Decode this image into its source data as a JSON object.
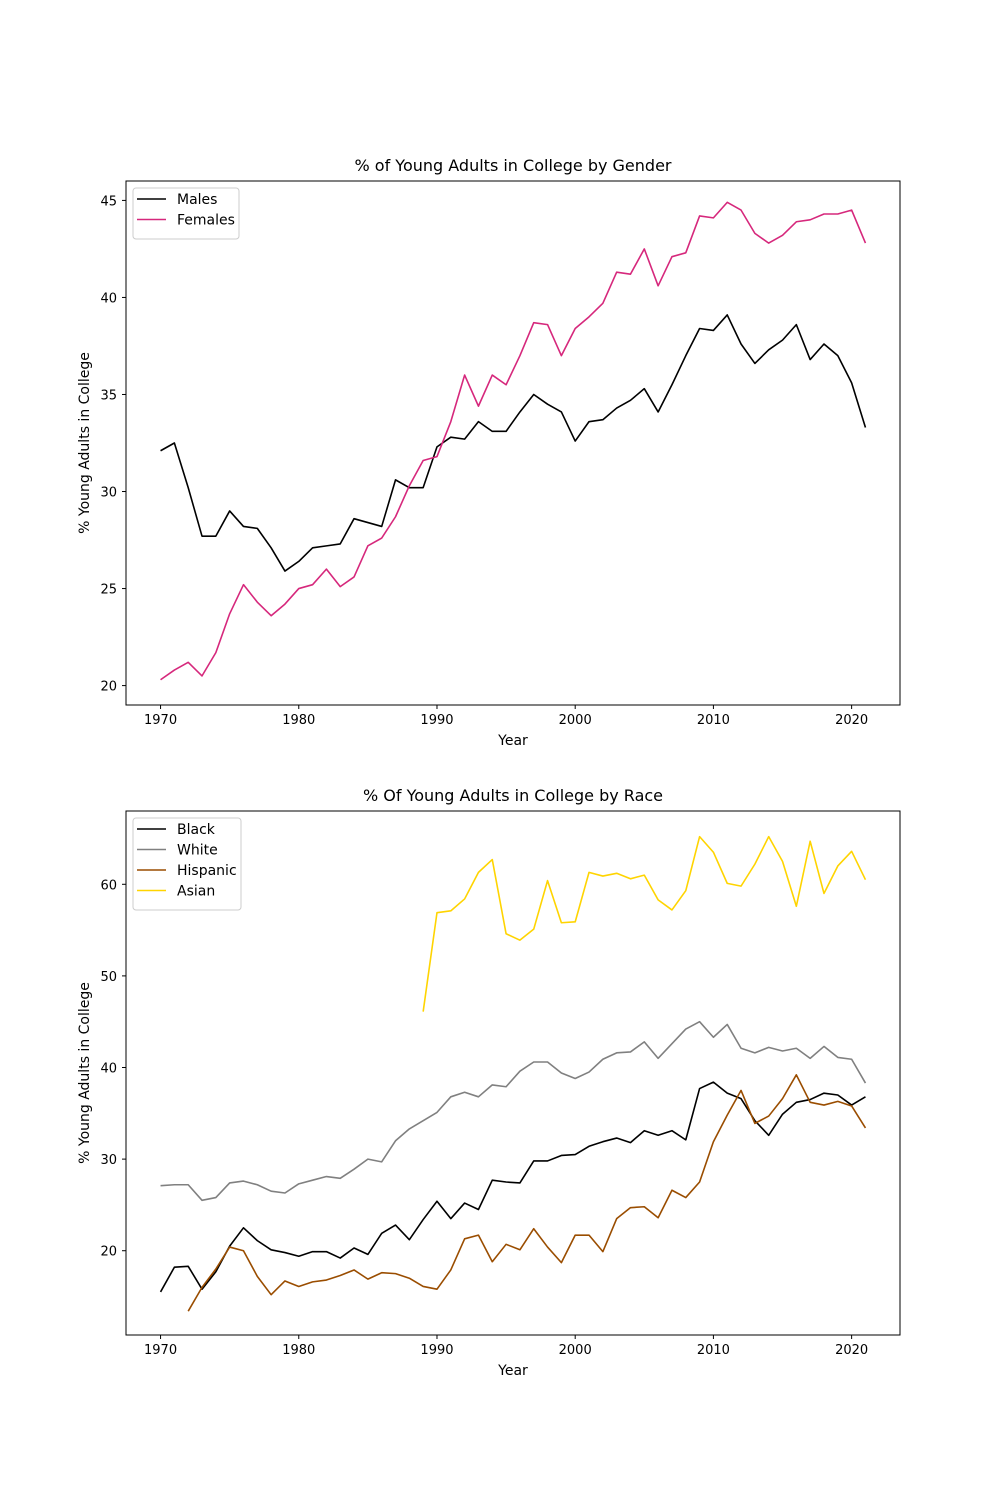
{
  "chart_data": [
    {
      "type": "line",
      "title": "% of Young Adults in College by Gender",
      "xlabel": "Year",
      "ylabel": "% Young Adults in College",
      "xlim": [
        1967.5,
        2023.5
      ],
      "ylim": [
        19,
        46
      ],
      "xticks": [
        1970,
        1980,
        1990,
        2000,
        2010,
        2020
      ],
      "yticks": [
        20,
        25,
        30,
        35,
        40,
        45
      ],
      "grid": false,
      "legend": "upper-left",
      "x": [
        1970,
        1971,
        1972,
        1973,
        1974,
        1975,
        1976,
        1977,
        1978,
        1979,
        1980,
        1981,
        1982,
        1983,
        1984,
        1985,
        1986,
        1987,
        1988,
        1989,
        1990,
        1991,
        1992,
        1993,
        1994,
        1995,
        1996,
        1997,
        1998,
        1999,
        2000,
        2001,
        2002,
        2003,
        2004,
        2005,
        2006,
        2007,
        2008,
        2009,
        2010,
        2011,
        2012,
        2013,
        2014,
        2015,
        2016,
        2017,
        2018,
        2019,
        2020,
        2021
      ],
      "series": [
        {
          "name": "Males",
          "color": "#000000",
          "values": [
            32.1,
            32.5,
            30.2,
            27.7,
            27.7,
            29.0,
            28.2,
            28.1,
            27.1,
            25.9,
            26.4,
            27.1,
            27.2,
            27.3,
            28.6,
            28.4,
            28.2,
            30.6,
            30.2,
            30.2,
            32.3,
            32.8,
            32.7,
            33.6,
            33.1,
            33.1,
            34.1,
            35.0,
            34.5,
            34.1,
            32.6,
            33.6,
            33.7,
            34.3,
            34.7,
            35.3,
            34.1,
            35.5,
            37.0,
            38.4,
            38.3,
            39.1,
            37.6,
            36.6,
            37.3,
            37.8,
            38.6,
            36.8,
            37.6,
            37.0,
            35.6,
            33.3
          ]
        },
        {
          "name": "Females",
          "color": "#d6287c",
          "values": [
            20.3,
            20.8,
            21.2,
            20.5,
            21.7,
            23.7,
            25.2,
            24.3,
            23.6,
            24.2,
            25.0,
            25.2,
            26.0,
            25.1,
            25.6,
            27.2,
            27.6,
            28.7,
            30.3,
            31.6,
            31.8,
            33.6,
            36.0,
            34.4,
            36.0,
            35.5,
            37.0,
            38.7,
            38.6,
            37.0,
            38.4,
            39.0,
            39.7,
            41.3,
            41.2,
            42.5,
            40.6,
            42.1,
            42.3,
            44.2,
            44.1,
            44.9,
            44.5,
            43.3,
            42.8,
            43.2,
            43.9,
            44.0,
            44.3,
            44.3,
            44.5,
            42.8
          ]
        }
      ]
    },
    {
      "type": "line",
      "title": "% Of Young Adults in College by Race",
      "xlabel": "Year",
      "ylabel": "% Young Adults in College",
      "xlim": [
        1967.5,
        2023.5
      ],
      "ylim": [
        10.8,
        68.0
      ],
      "xticks": [
        1970,
        1980,
        1990,
        2000,
        2010,
        2020
      ],
      "yticks": [
        20,
        30,
        40,
        50,
        60
      ],
      "grid": false,
      "legend": "upper-left",
      "x": [
        1970,
        1971,
        1972,
        1973,
        1974,
        1975,
        1976,
        1977,
        1978,
        1979,
        1980,
        1981,
        1982,
        1983,
        1984,
        1985,
        1986,
        1987,
        1988,
        1989,
        1990,
        1991,
        1992,
        1993,
        1994,
        1995,
        1996,
        1997,
        1998,
        1999,
        2000,
        2001,
        2002,
        2003,
        2004,
        2005,
        2006,
        2007,
        2008,
        2009,
        2010,
        2011,
        2012,
        2013,
        2014,
        2015,
        2016,
        2017,
        2018,
        2019,
        2020,
        2021
      ],
      "series": [
        {
          "name": "Black",
          "color": "#000000",
          "values": [
            15.5,
            18.2,
            18.3,
            15.8,
            17.7,
            20.5,
            22.5,
            21.1,
            20.1,
            19.8,
            19.4,
            19.9,
            19.9,
            19.2,
            20.3,
            19.6,
            21.9,
            22.8,
            21.2,
            23.4,
            25.4,
            23.5,
            25.2,
            24.5,
            27.7,
            27.5,
            27.4,
            29.8,
            29.8,
            30.4,
            30.5,
            31.4,
            31.9,
            32.3,
            31.8,
            33.1,
            32.6,
            33.1,
            32.1,
            37.7,
            38.4,
            37.2,
            36.6,
            34.2,
            32.6,
            34.9,
            36.2,
            36.5,
            37.2,
            37.0,
            35.9,
            36.8
          ]
        },
        {
          "name": "White",
          "color": "#808080",
          "values": [
            27.1,
            27.2,
            27.2,
            25.5,
            25.8,
            27.4,
            27.6,
            27.2,
            26.5,
            26.3,
            27.3,
            27.7,
            28.1,
            27.9,
            28.9,
            30.0,
            29.7,
            32.0,
            33.3,
            34.2,
            35.1,
            36.8,
            37.3,
            36.8,
            38.1,
            37.9,
            39.6,
            40.6,
            40.6,
            39.4,
            38.8,
            39.5,
            40.9,
            41.6,
            41.7,
            42.8,
            41.0,
            42.6,
            44.2,
            45.0,
            43.3,
            44.7,
            42.1,
            41.6,
            42.2,
            41.8,
            42.1,
            41.0,
            42.3,
            41.1,
            40.9,
            38.3
          ]
        },
        {
          "name": "Hispanic",
          "color": "#9a4d00",
          "values": [
            null,
            null,
            13.4,
            16.0,
            18.0,
            20.4,
            20.0,
            17.2,
            15.2,
            16.7,
            16.1,
            16.6,
            16.8,
            17.3,
            17.9,
            16.9,
            17.6,
            17.5,
            17.0,
            16.1,
            15.8,
            17.9,
            21.3,
            21.7,
            18.8,
            20.7,
            20.1,
            22.4,
            20.4,
            18.7,
            21.7,
            21.7,
            19.9,
            23.5,
            24.7,
            24.8,
            23.6,
            26.6,
            25.8,
            27.5,
            31.9,
            34.8,
            37.5,
            33.9,
            34.7,
            36.6,
            39.2,
            36.2,
            35.9,
            36.3,
            35.8,
            33.4
          ]
        },
        {
          "name": "Asian",
          "color": "#ffd400",
          "values": [
            null,
            null,
            null,
            null,
            null,
            null,
            null,
            null,
            null,
            null,
            null,
            null,
            null,
            null,
            null,
            null,
            null,
            null,
            null,
            46.1,
            56.9,
            57.1,
            58.4,
            61.3,
            62.7,
            54.6,
            53.9,
            55.1,
            60.4,
            55.8,
            55.9,
            61.3,
            60.9,
            61.2,
            60.6,
            61.0,
            58.3,
            57.2,
            59.3,
            65.2,
            63.5,
            60.1,
            59.8,
            62.2,
            65.2,
            62.5,
            57.6,
            64.7,
            59.0,
            62.0,
            63.6,
            60.5
          ]
        }
      ]
    }
  ]
}
